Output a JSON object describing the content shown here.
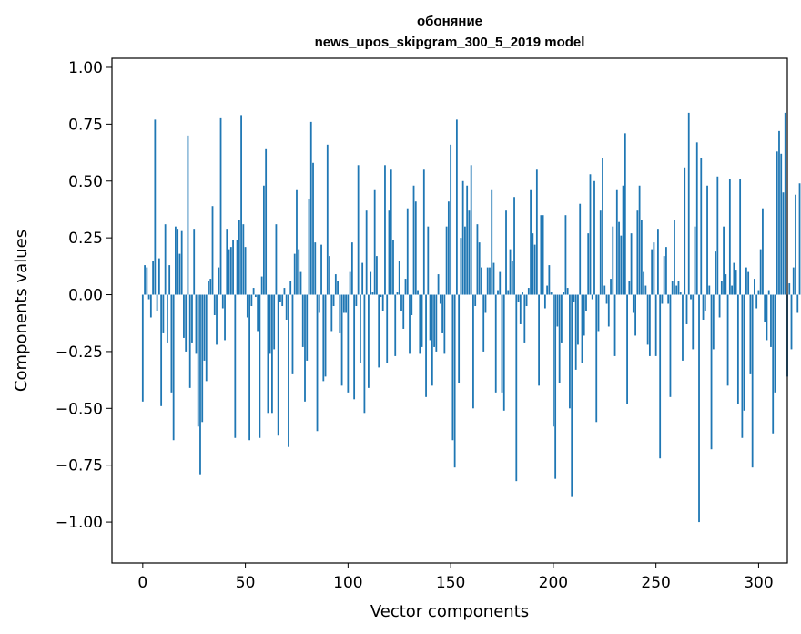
{
  "chart_data": {
    "type": "bar",
    "title_line1": "обоняние",
    "title_line2": "news_upos_skipgram_300_5_2019 model",
    "xlabel": "Vector components",
    "ylabel": "Components values",
    "xlim": [
      -15,
      314
    ],
    "ylim": [
      -1.18,
      1.04
    ],
    "xticks": [
      0,
      50,
      100,
      150,
      200,
      250,
      300
    ],
    "xtick_labels": [
      "0",
      "50",
      "100",
      "150",
      "200",
      "250",
      "300"
    ],
    "yticks": [
      -1.0,
      -0.75,
      -0.5,
      -0.25,
      0.0,
      0.25,
      0.5,
      0.75,
      1.0
    ],
    "ytick_labels": [
      "−1.00",
      "−0.75",
      "−0.50",
      "−0.25",
      "0.00",
      "0.25",
      "0.50",
      "0.75",
      "1.00"
    ],
    "bar_color": "#1f77b4",
    "bar_width": 0.8,
    "values": [
      -0.47,
      0.13,
      0.12,
      -0.02,
      -0.1,
      0.15,
      0.77,
      -0.07,
      0.16,
      -0.49,
      -0.17,
      0.31,
      -0.21,
      0.13,
      -0.43,
      -0.64,
      0.3,
      0.29,
      0.18,
      0.28,
      -0.19,
      -0.25,
      0.7,
      -0.41,
      -0.21,
      0.29,
      -0.26,
      -0.58,
      -0.79,
      -0.56,
      -0.29,
      -0.38,
      0.06,
      0.07,
      0.39,
      -0.09,
      -0.22,
      0.12,
      0.78,
      -0.06,
      -0.2,
      0.29,
      0.2,
      0.21,
      0.24,
      -0.63,
      0.24,
      0.33,
      0.79,
      0.31,
      0.21,
      -0.1,
      -0.64,
      -0.05,
      0.03,
      -0.01,
      -0.16,
      -0.63,
      0.08,
      0.48,
      0.64,
      -0.52,
      -0.26,
      -0.52,
      -0.24,
      0.31,
      -0.62,
      -0.03,
      -0.05,
      0.03,
      -0.11,
      -0.67,
      0.06,
      -0.35,
      0.18,
      0.46,
      0.2,
      0.1,
      -0.23,
      -0.47,
      -0.29,
      0.42,
      0.76,
      0.58,
      0.23,
      -0.6,
      -0.08,
      0.22,
      -0.38,
      -0.36,
      0.66,
      0.17,
      -0.16,
      -0.05,
      0.09,
      0.06,
      -0.17,
      -0.4,
      -0.08,
      -0.08,
      -0.43,
      0.1,
      0.23,
      -0.46,
      -0.05,
      0.57,
      -0.3,
      0.14,
      -0.52,
      0.37,
      -0.41,
      0.1,
      0.01,
      0.46,
      0.17,
      -0.32,
      -0.01,
      -0.07,
      0.57,
      -0.3,
      0.37,
      0.55,
      0.24,
      -0.27,
      0.01,
      0.15,
      -0.07,
      -0.15,
      0.07,
      0.38,
      -0.26,
      -0.09,
      0.48,
      0.41,
      0.02,
      -0.26,
      -0.23,
      0.55,
      -0.45,
      0.3,
      -0.2,
      -0.4,
      -0.23,
      -0.25,
      0.09,
      -0.04,
      -0.17,
      -0.26,
      0.3,
      0.41,
      0.66,
      -0.64,
      -0.76,
      0.77,
      -0.39,
      0.25,
      0.5,
      0.3,
      0.48,
      0.37,
      0.57,
      -0.5,
      -0.05,
      0.31,
      0.23,
      0.12,
      -0.25,
      -0.08,
      0.12,
      0.12,
      0.46,
      0.14,
      -0.43,
      0.02,
      0.1,
      -0.43,
      -0.51,
      0.37,
      0.02,
      0.2,
      0.15,
      0.43,
      -0.82,
      -0.03,
      -0.13,
      0.01,
      -0.21,
      -0.05,
      0.03,
      0.46,
      0.27,
      0.22,
      0.55,
      -0.4,
      0.35,
      0.35,
      -0.06,
      0.04,
      0.13,
      0.01,
      -0.58,
      -0.81,
      -0.14,
      -0.39,
      -0.21,
      0.01,
      0.35,
      0.03,
      -0.5,
      -0.89,
      -0.03,
      -0.33,
      -0.22,
      0.4,
      -0.3,
      -0.18,
      -0.07,
      0.27,
      0.53,
      -0.02,
      0.5,
      -0.56,
      -0.16,
      0.37,
      0.6,
      0.04,
      -0.04,
      -0.14,
      0.07,
      0.3,
      -0.27,
      0.46,
      0.32,
      0.26,
      0.48,
      0.71,
      -0.48,
      0.06,
      0.27,
      -0.08,
      -0.18,
      0.37,
      0.48,
      0.33,
      0.1,
      0.04,
      -0.22,
      -0.27,
      0.2,
      0.23,
      -0.27,
      0.29,
      -0.72,
      -0.04,
      0.17,
      0.21,
      -0.04,
      -0.45,
      0.06,
      0.33,
      0.04,
      0.06,
      0.01,
      -0.29,
      0.56,
      -0.13,
      0.8,
      -0.02,
      -0.24,
      0.3,
      0.67,
      -1.0,
      0.6,
      -0.11,
      -0.07,
      0.48,
      0.04,
      -0.68,
      -0.24,
      0.19,
      0.52,
      -0.1,
      0.06,
      0.3,
      0.09,
      -0.4,
      0.51,
      0.04,
      0.14,
      0.11,
      -0.48,
      0.51,
      -0.63,
      -0.51,
      0.12,
      0.1,
      -0.35,
      -0.76,
      0.07,
      -0.06,
      0.02,
      0.2,
      0.38,
      -0.12,
      -0.2,
      0.02,
      -0.23,
      -0.61,
      -0.43,
      0.63,
      0.72,
      0.62,
      0.45,
      0.8,
      -0.36,
      0.05,
      -0.24,
      0.12,
      0.44,
      -0.08,
      0.49
    ]
  }
}
